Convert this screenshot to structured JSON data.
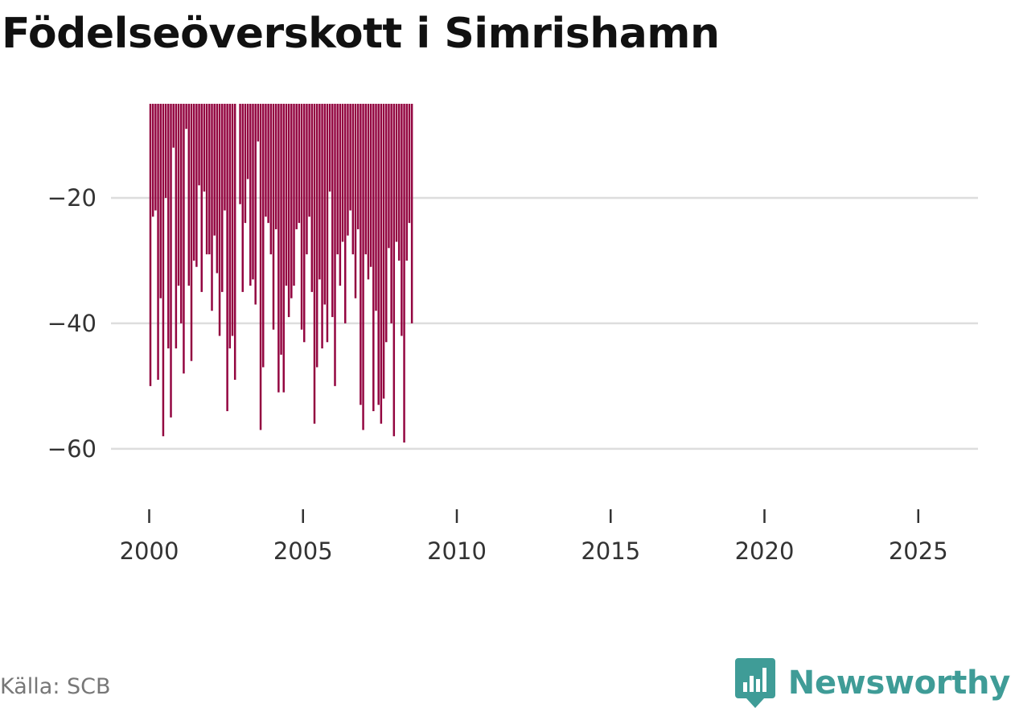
{
  "title": "Födelseöverskott i Simrishamn",
  "source": "Källa: SCB",
  "brand": {
    "name": "Newsworthy",
    "icon": "newsworthy-logo-icon",
    "color": "#3f9c97"
  },
  "colors": {
    "bar": "#930540",
    "grid": "#dddddd",
    "axis": "#333333"
  },
  "chart_data": {
    "type": "bar",
    "title": "Födelseöverskott i Simrishamn",
    "xlabel": "",
    "ylabel": "",
    "frequency": "monthly",
    "start": "2000-01",
    "ylim": [
      -69,
      -5
    ],
    "xlim": [
      1999.25,
      2026.5
    ],
    "y_ticks": [
      -20,
      -40,
      -60
    ],
    "y_tick_labels": [
      "−20",
      "−40",
      "−60"
    ],
    "x_ticks": [
      2000,
      2005,
      2010,
      2015,
      2020,
      2025
    ],
    "x_tick_labels": [
      "2000",
      "2005",
      "2010",
      "2015",
      "2020",
      "2025"
    ],
    "grid": "horizontal",
    "values": [
      -50,
      -23,
      -22,
      -49,
      -36,
      -58,
      -20,
      -44,
      -55,
      -12,
      -44,
      -34,
      -40,
      -48,
      -9,
      -34,
      -46,
      -30,
      -31,
      -18,
      -35,
      -19,
      -29,
      -29,
      -38,
      -26,
      -32,
      -42,
      -35,
      -22,
      -54,
      -44,
      -42,
      -49,
      null,
      -21,
      -35,
      -24,
      -17,
      -34,
      -33,
      -37,
      -11,
      -57,
      -47,
      -23,
      -24,
      -29,
      -41,
      -25,
      -51,
      -45,
      -51,
      -34,
      -39,
      -36,
      -34,
      -25,
      -24,
      -41,
      -43,
      -29,
      -23,
      -35,
      -56,
      -47,
      -33,
      -44,
      -37,
      -43,
      -19,
      -39,
      -50,
      -29,
      -34,
      -27,
      -40,
      -26,
      -22,
      -29,
      -36,
      -25,
      -53,
      -57,
      -29,
      -33,
      -31,
      -54,
      -38,
      -53,
      -56,
      -52,
      -43,
      -28,
      -40,
      -58,
      -27,
      -30,
      -42,
      -59,
      -30,
      -24,
      -40
    ]
  }
}
